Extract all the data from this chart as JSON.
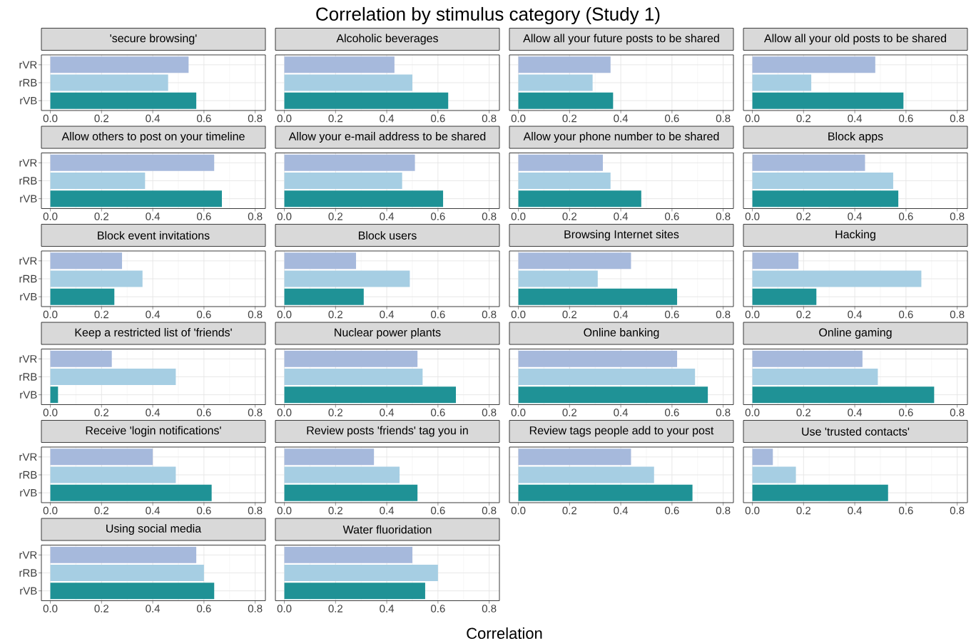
{
  "chart_data": [
    {
      "type": "other",
      "title": "Correlation by stimulus category (Study 1)",
      "annotations": [
        "Correlation"
      ]
    },
    {
      "type": "bar",
      "orientation": "horizontal",
      "title": "'secure browsing'",
      "categories": [
        "rVR",
        "rRB",
        "rVB"
      ],
      "values": [
        0.54,
        0.46,
        0.57
      ],
      "colors": [
        "#a6b9dc",
        "#a6cee3",
        "#1f9296"
      ],
      "xlim": [
        -0.035,
        0.84
      ],
      "xticks": [
        {
          "value": 0,
          "label": "0.0"
        },
        {
          "value": 0.2,
          "label": "0.2"
        },
        {
          "value": 0.4,
          "label": "0.4"
        },
        {
          "value": 0.6,
          "label": "0.6"
        },
        {
          "value": 0.8,
          "label": "0.8"
        }
      ],
      "grid": true
    },
    {
      "type": "bar",
      "orientation": "horizontal",
      "title": "Alcoholic beverages",
      "categories": [
        null,
        null,
        null
      ],
      "values": [
        0.43,
        0.5,
        0.64
      ],
      "colors": [
        "#a6b9dc",
        "#a6cee3",
        "#1f9296"
      ],
      "xlim": [
        -0.035,
        0.84
      ],
      "xticks": [
        {
          "value": 0,
          "label": "0.0"
        },
        {
          "value": 0.2,
          "label": "0.2"
        },
        {
          "value": 0.4,
          "label": "0.4"
        },
        {
          "value": 0.6,
          "label": "0.6"
        },
        {
          "value": 0.8,
          "label": "0.8"
        }
      ],
      "grid": true
    },
    {
      "type": "bar",
      "orientation": "horizontal",
      "title": "Allow all your future posts to be shared",
      "categories": [
        null,
        null,
        null
      ],
      "values": [
        0.36,
        0.29,
        0.37
      ],
      "colors": [
        "#a6b9dc",
        "#a6cee3",
        "#1f9296"
      ],
      "xlim": [
        -0.035,
        0.84
      ],
      "xticks": [
        {
          "value": 0,
          "label": "0.0"
        },
        {
          "value": 0.2,
          "label": "0.2"
        },
        {
          "value": 0.4,
          "label": "0.4"
        },
        {
          "value": 0.6,
          "label": "0.6"
        },
        {
          "value": 0.8,
          "label": "0.8"
        }
      ],
      "grid": true
    },
    {
      "type": "bar",
      "orientation": "horizontal",
      "title": "Allow all your old posts to be shared",
      "categories": [
        null,
        null,
        null
      ],
      "values": [
        0.48,
        0.23,
        0.59
      ],
      "colors": [
        "#a6b9dc",
        "#a6cee3",
        "#1f9296"
      ],
      "xlim": [
        -0.035,
        0.84
      ],
      "xticks": [
        {
          "value": 0,
          "label": "0.0"
        },
        {
          "value": 0.2,
          "label": "0.2"
        },
        {
          "value": 0.4,
          "label": "0.4"
        },
        {
          "value": 0.6,
          "label": "0.6"
        },
        {
          "value": 0.8,
          "label": "0.8"
        }
      ],
      "grid": true
    },
    {
      "type": "bar",
      "orientation": "horizontal",
      "title": "Allow others to post on your timeline",
      "categories": [
        "rVR",
        "rRB",
        "rVB"
      ],
      "values": [
        0.64,
        0.37,
        0.67
      ],
      "colors": [
        "#a6b9dc",
        "#a6cee3",
        "#1f9296"
      ],
      "xlim": [
        -0.035,
        0.84
      ],
      "xticks": [
        {
          "value": 0,
          "label": "0.0"
        },
        {
          "value": 0.2,
          "label": "0.2"
        },
        {
          "value": 0.4,
          "label": "0.4"
        },
        {
          "value": 0.6,
          "label": "0.6"
        },
        {
          "value": 0.8,
          "label": "0.8"
        }
      ],
      "grid": true
    },
    {
      "type": "bar",
      "orientation": "horizontal",
      "title": "Allow your e-mail address to be shared",
      "categories": [
        null,
        null,
        null
      ],
      "values": [
        0.51,
        0.46,
        0.62
      ],
      "colors": [
        "#a6b9dc",
        "#a6cee3",
        "#1f9296"
      ],
      "xlim": [
        -0.035,
        0.84
      ],
      "xticks": [
        {
          "value": 0,
          "label": "0.0"
        },
        {
          "value": 0.2,
          "label": "0.2"
        },
        {
          "value": 0.4,
          "label": "0.4"
        },
        {
          "value": 0.6,
          "label": "0.6"
        },
        {
          "value": 0.8,
          "label": "0.8"
        }
      ],
      "grid": true
    },
    {
      "type": "bar",
      "orientation": "horizontal",
      "title": "Allow your phone number to be shared",
      "categories": [
        null,
        null,
        null
      ],
      "values": [
        0.33,
        0.36,
        0.48
      ],
      "colors": [
        "#a6b9dc",
        "#a6cee3",
        "#1f9296"
      ],
      "xlim": [
        -0.035,
        0.84
      ],
      "xticks": [
        {
          "value": 0,
          "label": "0.0"
        },
        {
          "value": 0.2,
          "label": "0.2"
        },
        {
          "value": 0.4,
          "label": "0.4"
        },
        {
          "value": 0.6,
          "label": "0.6"
        },
        {
          "value": 0.8,
          "label": "0.8"
        }
      ],
      "grid": true
    },
    {
      "type": "bar",
      "orientation": "horizontal",
      "title": "Block apps",
      "categories": [
        null,
        null,
        null
      ],
      "values": [
        0.44,
        0.55,
        0.57
      ],
      "colors": [
        "#a6b9dc",
        "#a6cee3",
        "#1f9296"
      ],
      "xlim": [
        -0.035,
        0.84
      ],
      "xticks": [
        {
          "value": 0,
          "label": "0.0"
        },
        {
          "value": 0.2,
          "label": "0.2"
        },
        {
          "value": 0.4,
          "label": "0.4"
        },
        {
          "value": 0.6,
          "label": "0.6"
        },
        {
          "value": 0.8,
          "label": "0.8"
        }
      ],
      "grid": true
    },
    {
      "type": "bar",
      "orientation": "horizontal",
      "title": "Block event invitations",
      "categories": [
        "rVR",
        "rRB",
        "rVB"
      ],
      "values": [
        0.28,
        0.36,
        0.25
      ],
      "colors": [
        "#a6b9dc",
        "#a6cee3",
        "#1f9296"
      ],
      "xlim": [
        -0.035,
        0.84
      ],
      "xticks": [
        {
          "value": 0,
          "label": "0.0"
        },
        {
          "value": 0.2,
          "label": "0.2"
        },
        {
          "value": 0.4,
          "label": "0.4"
        },
        {
          "value": 0.6,
          "label": "0.6"
        },
        {
          "value": 0.8,
          "label": "0.8"
        }
      ],
      "grid": true
    },
    {
      "type": "bar",
      "orientation": "horizontal",
      "title": "Block users",
      "categories": [
        null,
        null,
        null
      ],
      "values": [
        0.28,
        0.49,
        0.31
      ],
      "colors": [
        "#a6b9dc",
        "#a6cee3",
        "#1f9296"
      ],
      "xlim": [
        -0.035,
        0.84
      ],
      "xticks": [
        {
          "value": 0,
          "label": "0.0"
        },
        {
          "value": 0.2,
          "label": "0.2"
        },
        {
          "value": 0.4,
          "label": "0.4"
        },
        {
          "value": 0.6,
          "label": "0.6"
        },
        {
          "value": 0.8,
          "label": "0.8"
        }
      ],
      "grid": true
    },
    {
      "type": "bar",
      "orientation": "horizontal",
      "title": "Browsing Internet sites",
      "categories": [
        null,
        null,
        null
      ],
      "values": [
        0.44,
        0.31,
        0.62
      ],
      "colors": [
        "#a6b9dc",
        "#a6cee3",
        "#1f9296"
      ],
      "xlim": [
        -0.035,
        0.84
      ],
      "xticks": [
        {
          "value": 0,
          "label": "0.0"
        },
        {
          "value": 0.2,
          "label": "0.2"
        },
        {
          "value": 0.4,
          "label": "0.4"
        },
        {
          "value": 0.6,
          "label": "0.6"
        },
        {
          "value": 0.8,
          "label": "0.8"
        }
      ],
      "grid": true
    },
    {
      "type": "bar",
      "orientation": "horizontal",
      "title": "Hacking",
      "categories": [
        null,
        null,
        null
      ],
      "values": [
        0.18,
        0.66,
        0.25
      ],
      "colors": [
        "#a6b9dc",
        "#a6cee3",
        "#1f9296"
      ],
      "xlim": [
        -0.035,
        0.84
      ],
      "xticks": [
        {
          "value": 0,
          "label": "0.0"
        },
        {
          "value": 0.2,
          "label": "0.2"
        },
        {
          "value": 0.4,
          "label": "0.4"
        },
        {
          "value": 0.6,
          "label": "0.6"
        },
        {
          "value": 0.8,
          "label": "0.8"
        }
      ],
      "grid": true
    },
    {
      "type": "bar",
      "orientation": "horizontal",
      "title": "Keep a restricted list of 'friends'",
      "categories": [
        "rVR",
        "rRB",
        "rVB"
      ],
      "values": [
        0.24,
        0.49,
        0.03
      ],
      "colors": [
        "#a6b9dc",
        "#a6cee3",
        "#1f9296"
      ],
      "xlim": [
        -0.035,
        0.84
      ],
      "xticks": [
        {
          "value": 0,
          "label": "0.0"
        },
        {
          "value": 0.2,
          "label": "0.2"
        },
        {
          "value": 0.4,
          "label": "0.4"
        },
        {
          "value": 0.6,
          "label": "0.6"
        },
        {
          "value": 0.8,
          "label": "0.8"
        }
      ],
      "grid": true
    },
    {
      "type": "bar",
      "orientation": "horizontal",
      "title": "Nuclear power plants",
      "categories": [
        null,
        null,
        null
      ],
      "values": [
        0.52,
        0.54,
        0.67
      ],
      "colors": [
        "#a6b9dc",
        "#a6cee3",
        "#1f9296"
      ],
      "xlim": [
        -0.035,
        0.84
      ],
      "xticks": [
        {
          "value": 0,
          "label": "0.0"
        },
        {
          "value": 0.2,
          "label": "0.2"
        },
        {
          "value": 0.4,
          "label": "0.4"
        },
        {
          "value": 0.6,
          "label": "0.6"
        },
        {
          "value": 0.8,
          "label": "0.8"
        }
      ],
      "grid": true
    },
    {
      "type": "bar",
      "orientation": "horizontal",
      "title": "Online banking",
      "categories": [
        null,
        null,
        null
      ],
      "values": [
        0.62,
        0.69,
        0.74
      ],
      "colors": [
        "#a6b9dc",
        "#a6cee3",
        "#1f9296"
      ],
      "xlim": [
        -0.035,
        0.84
      ],
      "xticks": [
        {
          "value": 0,
          "label": "0.0"
        },
        {
          "value": 0.2,
          "label": "0.2"
        },
        {
          "value": 0.4,
          "label": "0.4"
        },
        {
          "value": 0.6,
          "label": "0.6"
        },
        {
          "value": 0.8,
          "label": "0.8"
        }
      ],
      "grid": true
    },
    {
      "type": "bar",
      "orientation": "horizontal",
      "title": "Online gaming",
      "categories": [
        null,
        null,
        null
      ],
      "values": [
        0.43,
        0.49,
        0.71
      ],
      "colors": [
        "#a6b9dc",
        "#a6cee3",
        "#1f9296"
      ],
      "xlim": [
        -0.035,
        0.84
      ],
      "xticks": [
        {
          "value": 0,
          "label": "0.0"
        },
        {
          "value": 0.2,
          "label": "0.2"
        },
        {
          "value": 0.4,
          "label": "0.4"
        },
        {
          "value": 0.6,
          "label": "0.6"
        },
        {
          "value": 0.8,
          "label": "0.8"
        }
      ],
      "grid": true
    },
    {
      "type": "bar",
      "orientation": "horizontal",
      "title": "Receive 'login notifications'",
      "categories": [
        "rVR",
        "rRB",
        "rVB"
      ],
      "values": [
        0.4,
        0.49,
        0.63
      ],
      "colors": [
        "#a6b9dc",
        "#a6cee3",
        "#1f9296"
      ],
      "xlim": [
        -0.035,
        0.84
      ],
      "xticks": [
        {
          "value": 0,
          "label": "0.0"
        },
        {
          "value": 0.2,
          "label": "0.2"
        },
        {
          "value": 0.4,
          "label": "0.4"
        },
        {
          "value": 0.6,
          "label": "0.6"
        },
        {
          "value": 0.8,
          "label": "0.8"
        }
      ],
      "grid": true
    },
    {
      "type": "bar",
      "orientation": "horizontal",
      "title": "Review posts 'friends' tag you in",
      "categories": [
        null,
        null,
        null
      ],
      "values": [
        0.35,
        0.45,
        0.52
      ],
      "colors": [
        "#a6b9dc",
        "#a6cee3",
        "#1f9296"
      ],
      "xlim": [
        -0.035,
        0.84
      ],
      "xticks": [
        {
          "value": 0,
          "label": "0.0"
        },
        {
          "value": 0.2,
          "label": "0.2"
        },
        {
          "value": 0.4,
          "label": "0.4"
        },
        {
          "value": 0.6,
          "label": "0.6"
        },
        {
          "value": 0.8,
          "label": "0.8"
        }
      ],
      "grid": true
    },
    {
      "type": "bar",
      "orientation": "horizontal",
      "title": "Review tags people add to your post",
      "categories": [
        null,
        null,
        null
      ],
      "values": [
        0.44,
        0.53,
        0.68
      ],
      "colors": [
        "#a6b9dc",
        "#a6cee3",
        "#1f9296"
      ],
      "xlim": [
        -0.035,
        0.84
      ],
      "xticks": [
        {
          "value": 0,
          "label": "0.0"
        },
        {
          "value": 0.2,
          "label": "0.2"
        },
        {
          "value": 0.4,
          "label": "0.4"
        },
        {
          "value": 0.6,
          "label": "0.6"
        },
        {
          "value": 0.8,
          "label": "0.8"
        }
      ],
      "grid": true
    },
    {
      "type": "bar",
      "orientation": "horizontal",
      "title": "Use 'trusted contacts'",
      "categories": [
        null,
        null,
        null
      ],
      "values": [
        0.08,
        0.17,
        0.53
      ],
      "colors": [
        "#a6b9dc",
        "#a6cee3",
        "#1f9296"
      ],
      "xlim": [
        -0.035,
        0.84
      ],
      "xticks": [
        {
          "value": 0,
          "label": "0.0"
        },
        {
          "value": 0.2,
          "label": "0.2"
        },
        {
          "value": 0.4,
          "label": "0.4"
        },
        {
          "value": 0.6,
          "label": "0.6"
        },
        {
          "value": 0.8,
          "label": "0.8"
        }
      ],
      "grid": true
    },
    {
      "type": "bar",
      "orientation": "horizontal",
      "title": "Using social media",
      "categories": [
        "rVR",
        "rRB",
        "rVB"
      ],
      "values": [
        0.57,
        0.6,
        0.64
      ],
      "colors": [
        "#a6b9dc",
        "#a6cee3",
        "#1f9296"
      ],
      "xlim": [
        -0.035,
        0.84
      ],
      "xticks": [
        {
          "value": 0,
          "label": "0.0"
        },
        {
          "value": 0.2,
          "label": "0.2"
        },
        {
          "value": 0.4,
          "label": "0.4"
        },
        {
          "value": 0.6,
          "label": "0.6"
        },
        {
          "value": 0.8,
          "label": "0.8"
        }
      ],
      "grid": true
    },
    {
      "type": "bar",
      "orientation": "horizontal",
      "title": "Water fluoridation",
      "categories": [
        null,
        null,
        null
      ],
      "values": [
        0.5,
        0.6,
        0.55
      ],
      "colors": [
        "#a6b9dc",
        "#a6cee3",
        "#1f9296"
      ],
      "xlim": [
        -0.035,
        0.84
      ],
      "xticks": [
        {
          "value": 0,
          "label": "0.0"
        },
        {
          "value": 0.2,
          "label": "0.2"
        },
        {
          "value": 0.4,
          "label": "0.4"
        },
        {
          "value": 0.6,
          "label": "0.6"
        },
        {
          "value": 0.8,
          "label": "0.8"
        }
      ],
      "grid": true
    }
  ]
}
